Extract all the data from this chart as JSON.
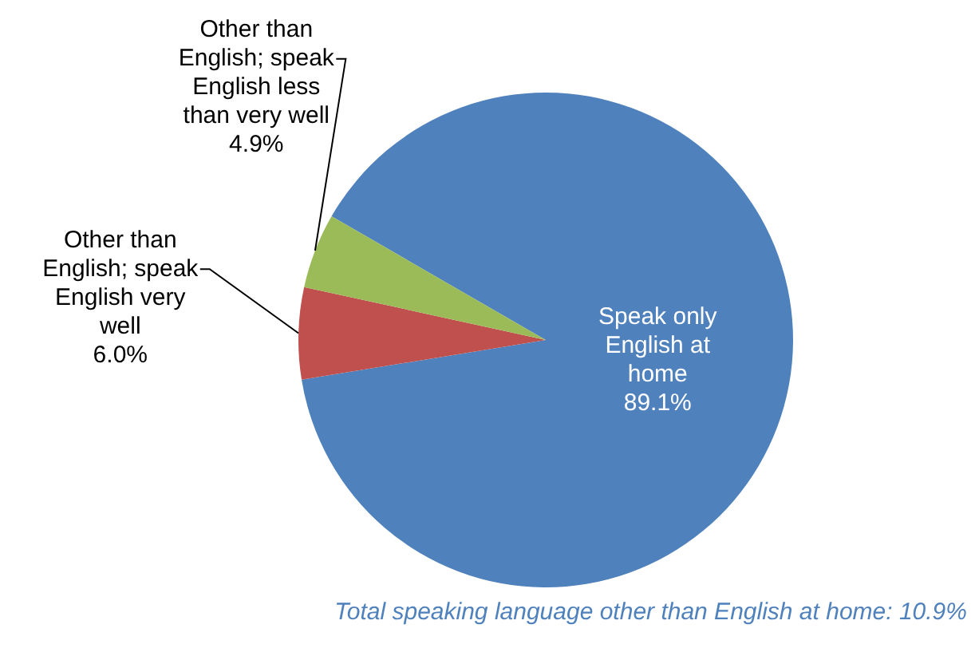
{
  "chart_data": {
    "type": "pie",
    "categories": [
      "Speak only English at home",
      "Other than English; speak English very well",
      "Other than English; speak English less than very well"
    ],
    "values": [
      89.1,
      6.0,
      4.9
    ],
    "colors": [
      "#4f81bd",
      "#c0504d",
      "#9bbb59"
    ],
    "value_labels": [
      "89.1%",
      "6.0%",
      "4.9%"
    ],
    "legend": false,
    "annotations": [
      "Total speaking language other than English at home: 10.9%"
    ]
  }
}
